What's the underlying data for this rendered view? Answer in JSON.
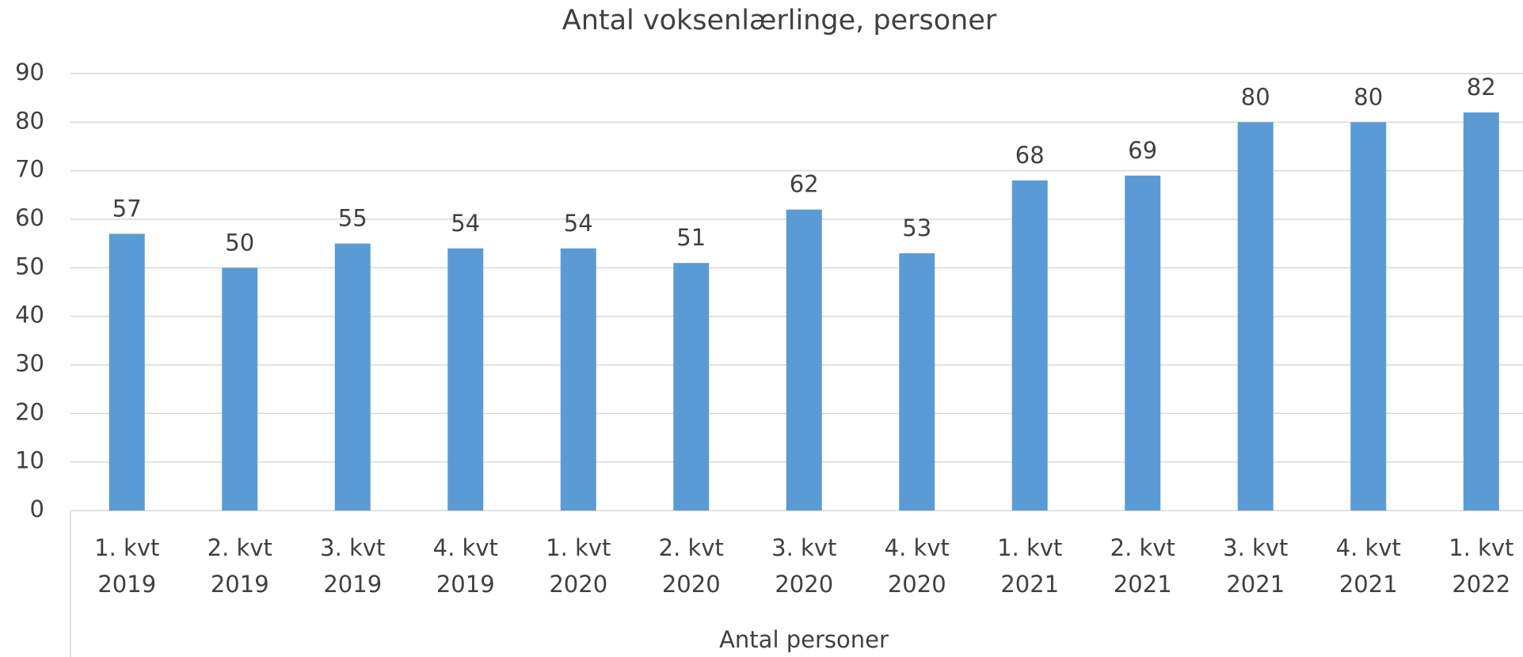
{
  "chart_data": {
    "type": "bar",
    "title": "Antal voksenlærlinge, personer",
    "x_label": "Antal personer",
    "categories": [
      "1. kvt\n2019",
      "2. kvt\n2019",
      "3. kvt\n2019",
      "4. kvt\n2019",
      "1. kvt\n2020",
      "2. kvt\n2020",
      "3. kvt\n2020",
      "4. kvt\n2020",
      "1. kvt\n2021",
      "2. kvt\n2021",
      "3. kvt\n2021",
      "4. kvt\n2021",
      "1. kvt\n2022"
    ],
    "values": [
      57,
      50,
      55,
      54,
      54,
      51,
      62,
      53,
      68,
      69,
      80,
      80,
      82
    ],
    "color": "#5b9bd5",
    "ylim": [
      0,
      90
    ],
    "yticks": [
      0,
      10,
      20,
      30,
      40,
      50,
      60,
      70,
      80,
      90
    ],
    "grid": true
  }
}
